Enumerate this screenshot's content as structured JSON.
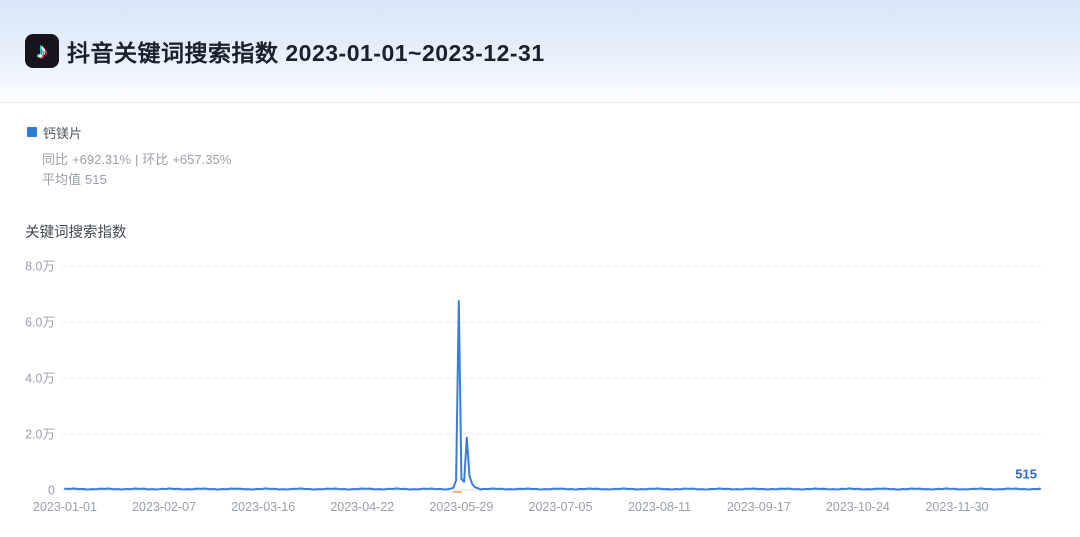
{
  "icons": {
    "logo_glyph": "♪"
  },
  "header": {
    "title": "抖音关键词搜索指数 2023-01-01~2023-12-31"
  },
  "legend": {
    "keyword": "钙镁片",
    "swatch_color": "#2e7bd6",
    "yoy_label": "同比",
    "yoy_value": "+692.31%",
    "divider": "|",
    "mom_label": "环比",
    "mom_value": "+657.35%",
    "avg_label": "平均值",
    "avg_value": "515"
  },
  "chart_data": {
    "type": "line",
    "title": "关键词搜索指数",
    "series_name": "钙镁片",
    "line_color": "#3b7ce0",
    "end_value_color": "#2f6bc0",
    "grid_color": "#e7e9ec",
    "axis_color": "#dfe2e6",
    "tick_color": "#9aa0a8",
    "ylim": [
      0,
      80000
    ],
    "days_span": 364,
    "grid": "horizontal-dashed",
    "legend_position": "top-left",
    "y_ticks": [
      {
        "label": "8.0万",
        "value": 80000
      },
      {
        "label": "6.0万",
        "value": 60000
      },
      {
        "label": "4.0万",
        "value": 40000
      },
      {
        "label": "2.0万",
        "value": 20000
      },
      {
        "label": "0",
        "value": 0
      }
    ],
    "x_ticks": [
      {
        "label": "2023-01-01",
        "day": 0
      },
      {
        "label": "2023-02-07",
        "day": 37
      },
      {
        "label": "2023-03-16",
        "day": 74
      },
      {
        "label": "2023-04-22",
        "day": 111
      },
      {
        "label": "2023-05-29",
        "day": 148
      },
      {
        "label": "2023-07-05",
        "day": 185
      },
      {
        "label": "2023-08-11",
        "day": 222
      },
      {
        "label": "2023-09-17",
        "day": 259
      },
      {
        "label": "2023-10-24",
        "day": 296
      },
      {
        "label": "2023-11-30",
        "day": 333
      }
    ],
    "spike_points": [
      {
        "date": "2023-05-25",
        "day": 144,
        "value": 500
      },
      {
        "date": "2023-05-26",
        "day": 145,
        "value": 800
      },
      {
        "date": "2023-05-27",
        "day": 146,
        "value": 3500
      },
      {
        "date": "2023-05-28",
        "day": 147,
        "value": 67500
      },
      {
        "date": "2023-05-29",
        "day": 148,
        "value": 4000
      },
      {
        "date": "2023-05-30",
        "day": 149,
        "value": 2900
      },
      {
        "date": "2023-05-31",
        "day": 150,
        "value": 18700
      },
      {
        "date": "2023-06-01",
        "day": 151,
        "value": 5000
      },
      {
        "date": "2023-06-02",
        "day": 152,
        "value": 2200
      },
      {
        "date": "2023-06-03",
        "day": 153,
        "value": 1000
      },
      {
        "date": "2023-06-04",
        "day": 154,
        "value": 700
      }
    ],
    "end_point": {
      "date": "2023-12-31",
      "day": 364,
      "value": 515
    },
    "end_label": "515",
    "average": 515,
    "baseline": {
      "mean": 360,
      "amp1": 120,
      "freq1": 0.52,
      "phase1": 0,
      "amp2": 85,
      "freq2": 1.93,
      "phase2": 1.3,
      "min": 140
    },
    "peak_marker": {
      "day": 147,
      "color": "#e0a45c"
    }
  }
}
